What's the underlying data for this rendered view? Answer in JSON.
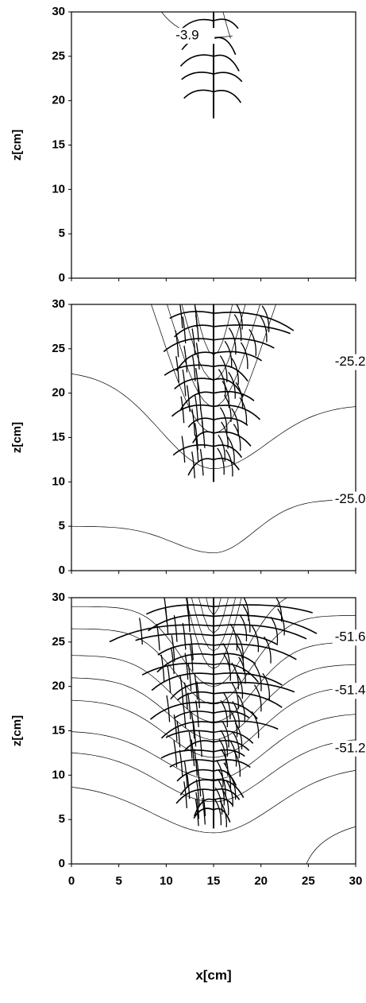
{
  "chart_data": [
    {
      "type": "contour",
      "ylabel": "z[cm]",
      "xlim": [
        0,
        30
      ],
      "ylim": [
        0,
        30
      ],
      "xticks": [
        0,
        5,
        10,
        15,
        20,
        25,
        30
      ],
      "yticks": [
        0,
        5,
        10,
        15,
        20,
        25,
        30
      ],
      "xtick_labels": false,
      "annotations": [
        "-3.9"
      ]
    },
    {
      "type": "contour",
      "ylabel": "z[cm]",
      "xlim": [
        0,
        30
      ],
      "ylim": [
        0,
        30
      ],
      "xticks": [
        0,
        5,
        10,
        15,
        20,
        25,
        30
      ],
      "yticks": [
        0,
        5,
        10,
        15,
        20,
        25,
        30
      ],
      "xtick_labels": false,
      "annotations": [
        "-25.2",
        "-25.0"
      ]
    },
    {
      "type": "contour",
      "ylabel": "z[cm]",
      "xlabel": "x[cm]",
      "xlim": [
        0,
        30
      ],
      "ylim": [
        0,
        30
      ],
      "xticks": [
        0,
        5,
        10,
        15,
        20,
        25,
        30
      ],
      "yticks": [
        0,
        5,
        10,
        15,
        20,
        25,
        30
      ],
      "xtick_labels": true,
      "annotations": [
        "-51.6",
        "-51.4",
        "-51.2"
      ]
    }
  ]
}
